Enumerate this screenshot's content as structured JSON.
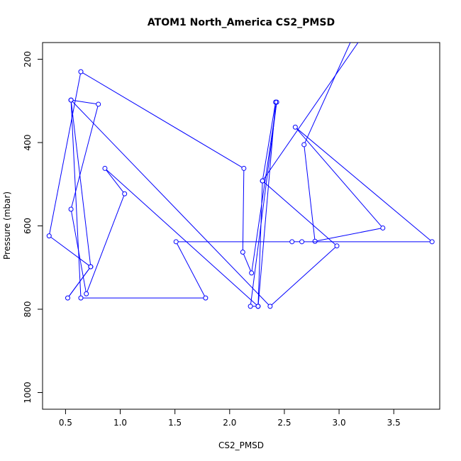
{
  "chart_data": {
    "type": "line",
    "title": "ATOM1 North_America CS2_PMSD",
    "xlabel": "CS2_PMSD",
    "ylabel": "Pressure (mbar)",
    "xlim": [
      0.29,
      3.92
    ],
    "ylim": [
      1040,
      160
    ],
    "y_axis_reversed": true,
    "x_ticks": [
      0.5,
      1.0,
      1.5,
      2.0,
      2.5,
      3.0,
      3.5
    ],
    "x_tick_labels": [
      "0.5",
      "1.0",
      "1.5",
      "2.0",
      "2.5",
      "3.0",
      "3.5"
    ],
    "y_ticks": [
      200,
      400,
      600,
      800,
      1000
    ],
    "y_tick_labels": [
      "200",
      "400",
      "600",
      "800",
      "1000"
    ],
    "grid": false,
    "series": [
      {
        "color": "#0000ff",
        "marker": "open-circle",
        "points": [
          {
            "x": 3.12,
            "y": 150
          },
          {
            "x": 2.68,
            "y": 405
          },
          {
            "x": 2.78,
            "y": 637
          },
          {
            "x": 3.4,
            "y": 605
          },
          {
            "x": 2.6,
            "y": 363
          },
          {
            "x": 3.85,
            "y": 638
          },
          {
            "x": 2.66,
            "y": 638
          },
          {
            "x": 2.57,
            "y": 638
          },
          {
            "x": 1.51,
            "y": 638
          },
          {
            "x": 1.78,
            "y": 773
          },
          {
            "x": 0.64,
            "y": 773
          },
          {
            "x": 0.55,
            "y": 298
          },
          {
            "x": 0.8,
            "y": 308
          },
          {
            "x": 0.55,
            "y": 560
          },
          {
            "x": 0.69,
            "y": 763
          },
          {
            "x": 1.04,
            "y": 523
          },
          {
            "x": 0.86,
            "y": 462
          },
          {
            "x": 2.26,
            "y": 793
          },
          {
            "x": 2.19,
            "y": 793
          },
          {
            "x": 2.43,
            "y": 303
          },
          {
            "x": 2.2,
            "y": 713
          },
          {
            "x": 2.12,
            "y": 663
          },
          {
            "x": 2.13,
            "y": 462
          },
          {
            "x": 0.64,
            "y": 230
          },
          {
            "x": 0.35,
            "y": 624
          },
          {
            "x": 0.73,
            "y": 698
          },
          {
            "x": 0.52,
            "y": 773
          },
          {
            "x": 0.73,
            "y": 698
          },
          {
            "x": 0.55,
            "y": 298
          },
          {
            "x": 2.37,
            "y": 793
          },
          {
            "x": 2.98,
            "y": 648
          },
          {
            "x": 2.3,
            "y": 492
          },
          {
            "x": 2.42,
            "y": 303
          },
          {
            "x": 2.26,
            "y": 793
          },
          {
            "x": 2.3,
            "y": 492
          },
          {
            "x": 3.2,
            "y": 150
          }
        ]
      }
    ]
  }
}
